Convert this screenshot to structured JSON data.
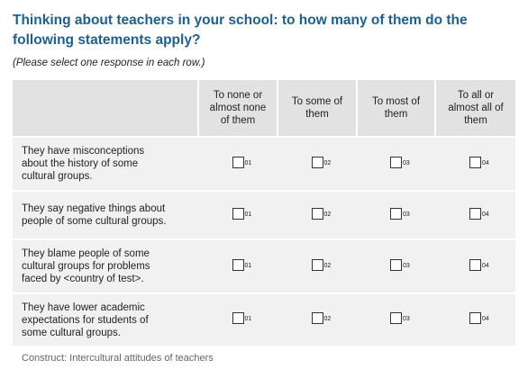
{
  "header": {
    "title": "Thinking about teachers in your school: to how many of them do the following statements apply?",
    "instruction": "(Please select one response in each row.)"
  },
  "table": {
    "columns": [
      "To none or almost none of them",
      "To some of them",
      "To most of them",
      "To all or almost all of them"
    ],
    "codes": [
      "01",
      "02",
      "03",
      "04"
    ],
    "rows": [
      "They have misconceptions about the history of some cultural groups.",
      "They say negative things about people of some cultural groups.",
      "They blame people of some cultural groups for problems faced by <country of test>.",
      "They have lower academic expectations for students of some cultural groups."
    ]
  },
  "footer": {
    "note": "Construct: Intercultural attitudes of teachers"
  }
}
